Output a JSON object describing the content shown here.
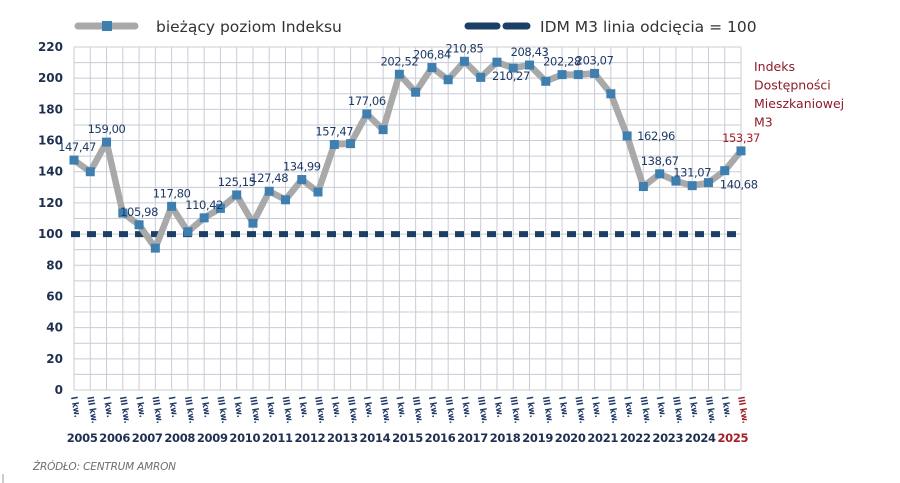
{
  "chart_data": {
    "type": "line",
    "title": "",
    "xlabel": "",
    "ylabel": "",
    "ylim": [
      0,
      220
    ],
    "yticks": [
      0,
      20,
      40,
      60,
      80,
      100,
      120,
      140,
      160,
      180,
      200,
      220
    ],
    "grid": true,
    "legend_position": "top",
    "annotation": [
      "Indeks",
      "Dostępności",
      "Mieszkaniowej",
      "M3"
    ],
    "quarter_labels": [
      "I kw.",
      "III kw."
    ],
    "years": [
      "2005",
      "2006",
      "2007",
      "2008",
      "2009",
      "2010",
      "2011",
      "2012",
      "2013",
      "2014",
      "2015",
      "2016",
      "2017",
      "2018",
      "2019",
      "2020",
      "2021",
      "2022",
      "2023",
      "2024",
      "2025"
    ],
    "x": [
      "2005 I kw.",
      "2005 III kw.",
      "2006 I kw.",
      "2006 III kw.",
      "2007 I kw.",
      "2007 III kw.",
      "2008 I kw.",
      "2008 III kw.",
      "2009 I kw.",
      "2009 III kw.",
      "2010 I kw.",
      "2010 III kw.",
      "2011 I kw.",
      "2011 III kw.",
      "2012 I kw.",
      "2012 III kw.",
      "2013 I kw.",
      "2013 III kw.",
      "2014 I kw.",
      "2014 III kw.",
      "2015 I kw.",
      "2015 III kw.",
      "2016 I kw.",
      "2016 III kw.",
      "2017 I kw.",
      "2017 III kw.",
      "2018 I kw.",
      "2018 III kw.",
      "2019 I kw.",
      "2019 III kw.",
      "2020 I kw.",
      "2020 III kw.",
      "2021 I kw.",
      "2021 III kw.",
      "2022 I kw.",
      "2022 III kw.",
      "2023 I kw.",
      "2023 III kw.",
      "2024 I kw.",
      "2024 III kw.",
      "2025 I kw.",
      "2025 III kw."
    ],
    "series": [
      {
        "name": "bieżący poziom Indeksu",
        "color": "#a9a9a9",
        "marker_color": "#3f7fb0",
        "values": [
          147.47,
          140,
          159.0,
          113.5,
          105.98,
          91,
          117.8,
          101.5,
          110.42,
          116.5,
          125.15,
          107,
          127.48,
          122,
          134.99,
          127,
          157.47,
          158,
          177.06,
          167,
          202.52,
          191,
          206.84,
          199,
          210.85,
          200.5,
          210.27,
          206.5,
          208.43,
          198,
          202.28,
          202.3,
          203.07,
          190,
          162.96,
          130.5,
          138.67,
          134,
          131.07,
          133,
          140.68,
          153.37
        ],
        "labels": [
          {
            "index": 0,
            "text": "147,47",
            "pos": "above-left"
          },
          {
            "index": 2,
            "text": "159,00",
            "pos": "above"
          },
          {
            "index": 4,
            "text": "105,98",
            "pos": "above"
          },
          {
            "index": 6,
            "text": "117,80",
            "pos": "above"
          },
          {
            "index": 8,
            "text": "110,42",
            "pos": "above"
          },
          {
            "index": 10,
            "text": "125,15",
            "pos": "above"
          },
          {
            "index": 12,
            "text": "127,48",
            "pos": "above"
          },
          {
            "index": 14,
            "text": "134,99",
            "pos": "above"
          },
          {
            "index": 16,
            "text": "157,47",
            "pos": "above"
          },
          {
            "index": 18,
            "text": "177,06",
            "pos": "above"
          },
          {
            "index": 20,
            "text": "202,52",
            "pos": "above"
          },
          {
            "index": 22,
            "text": "206,84",
            "pos": "above"
          },
          {
            "index": 24,
            "text": "210,85",
            "pos": "above"
          },
          {
            "index": 26,
            "text": "210,27",
            "pos": "below"
          },
          {
            "index": 28,
            "text": "208,43",
            "pos": "above"
          },
          {
            "index": 30,
            "text": "202,28",
            "pos": "above"
          },
          {
            "index": 32,
            "text": "203,07",
            "pos": "above"
          },
          {
            "index": 34,
            "text": "162,96",
            "pos": "right"
          },
          {
            "index": 36,
            "text": "138,67",
            "pos": "above"
          },
          {
            "index": 38,
            "text": "131,07",
            "pos": "above"
          },
          {
            "index": 40,
            "text": "140,68",
            "pos": "below"
          },
          {
            "index": 41,
            "text": "153,37",
            "pos": "above",
            "highlight": true
          }
        ]
      },
      {
        "name": "IDM M3 linia odcięcia = 100",
        "color": "#1c3f66",
        "style": "dashed",
        "constant": 100
      }
    ]
  },
  "source": "ŹRÓDŁO: CENTRUM AMRON",
  "colors": {
    "grid": "#c9ccd6",
    "text_dark": "#1f2f4f",
    "highlight": "#a3202a",
    "annotation": "#8e1b2a"
  }
}
